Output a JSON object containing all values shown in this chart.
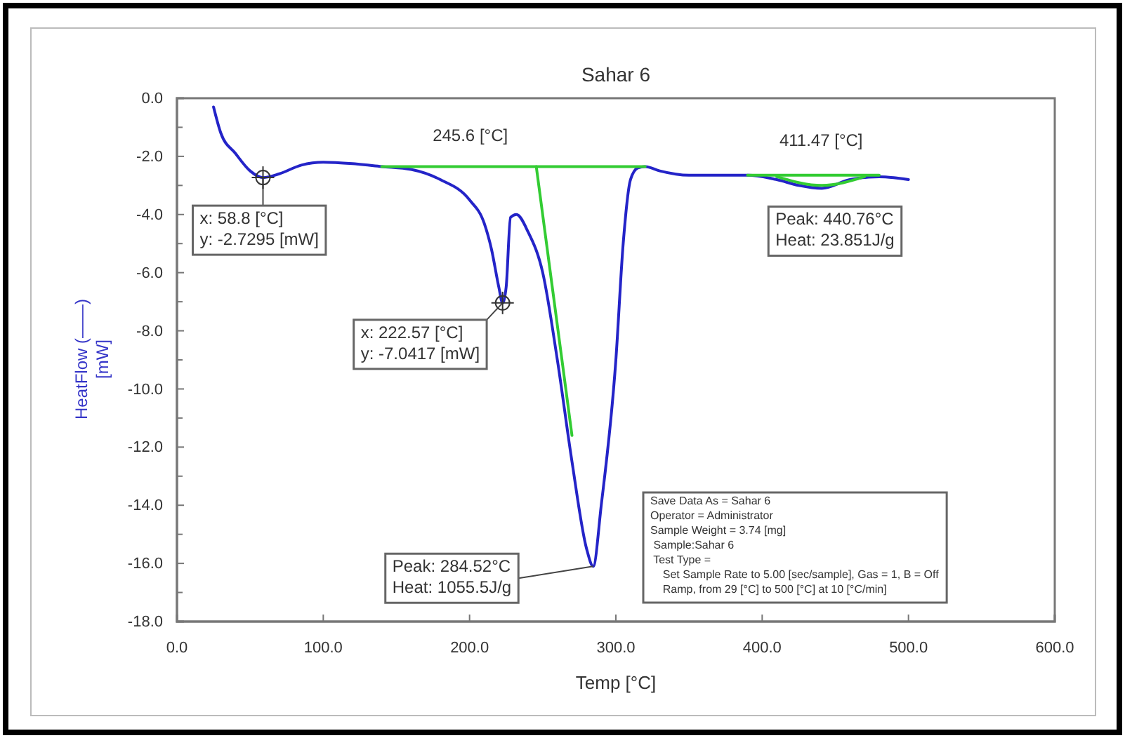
{
  "chart_data": {
    "type": "line",
    "title": "Sahar 6",
    "xlabel": "Temp [°C]",
    "ylabel": "HeatFlow (——)\n[mW]",
    "xlim": [
      0,
      600
    ],
    "xticks": [
      {
        "value": 0,
        "label": "0.0"
      },
      {
        "value": 100,
        "label": "100.0"
      },
      {
        "value": 200,
        "label": "200.0"
      },
      {
        "value": 300,
        "label": "300.0"
      },
      {
        "value": 400,
        "label": "400.0"
      },
      {
        "value": 500,
        "label": "500.0"
      },
      {
        "value": 600,
        "label": "600.0"
      }
    ],
    "ylim": [
      -18,
      0
    ],
    "yticks": [
      {
        "value": 0,
        "label": "0.0"
      },
      {
        "value": -2,
        "label": "-2.0"
      },
      {
        "value": -4,
        "label": "-4.0"
      },
      {
        "value": -6,
        "label": "-6.0"
      },
      {
        "value": -8,
        "label": "-8.0"
      },
      {
        "value": -10,
        "label": "-10.0"
      },
      {
        "value": -12,
        "label": "-12.0"
      },
      {
        "value": -14,
        "label": "-14.0"
      },
      {
        "value": -16,
        "label": "-16.0"
      },
      {
        "value": -18,
        "label": "-18.0"
      }
    ],
    "grid": false,
    "marker": "none",
    "line_style": "solid",
    "series": [
      {
        "color": "#2424c8",
        "x": [
          25,
          30,
          40,
          50,
          58.8,
          70,
          85,
          100,
          120,
          140,
          160,
          180,
          200,
          210,
          215,
          220,
          222.57,
          225,
          228,
          232,
          240,
          250,
          260,
          270,
          280,
          284.52,
          290,
          300,
          305,
          310,
          315,
          320,
          330,
          350,
          390,
          410,
          425,
          440.76,
          460,
          480,
          500
        ],
        "values": [
          -0.3,
          -1.2,
          -1.9,
          -2.5,
          -2.73,
          -2.6,
          -2.3,
          -2.2,
          -2.25,
          -2.35,
          -2.45,
          -2.8,
          -3.5,
          -4.3,
          -5.2,
          -6.5,
          -7.04,
          -6.5,
          -4.1,
          -4.0,
          -4.6,
          -6,
          -9,
          -12.5,
          -15.5,
          -16.1,
          -14,
          -9,
          -5,
          -2.8,
          -2.4,
          -2.35,
          -2.5,
          -2.65,
          -2.65,
          -2.8,
          -3.0,
          -3.1,
          -2.8,
          -2.7,
          -2.8
        ]
      },
      {
        "color": "#33cc33",
        "x": [
          140,
          320
        ],
        "values": [
          -2.35,
          -2.35
        ]
      },
      {
        "color": "#33cc33",
        "x": [
          245.6,
          270
        ],
        "values": [
          -2.35,
          -11.6
        ]
      },
      {
        "color": "#33cc33",
        "x": [
          390,
          480
        ],
        "values": [
          -2.65,
          -2.65
        ]
      },
      {
        "color": "#33cc33",
        "x": [
          410,
          440.76,
          470
        ],
        "values": [
          -2.7,
          -3.0,
          -2.7
        ]
      }
    ],
    "annotations": [
      {
        "text": "x: 58.8 [°C]\ny: -2.7295 [mW]",
        "x": 58.8,
        "y": -2.7295
      },
      {
        "text": "x: 222.57 [°C]\ny: -7.0417 [mW]",
        "x": 222.57,
        "y": -7.0417
      },
      {
        "text": "245.6 [°C]",
        "x": 245.6,
        "y": -2.35
      },
      {
        "text": "411.47 [°C]",
        "x": 411.47,
        "y": -2.65
      },
      {
        "text": "Peak: 440.76°C\nHeat: 23.851J/g",
        "x": 440.76,
        "y": -3.1
      },
      {
        "text": "Peak: 284.52°C\nHeat: 1055.5J/g",
        "x": 284.52,
        "y": -16.1
      },
      "Save Data As = Sahar 6\nOperator = Administrator\nSample Weight = 3.74 [mg]\n Sample:Sahar 6\n Test Type =\n    Set Sample Rate to 5.00 [sec/sample], Gas = 1, B = Off\n    Ramp, from 29 [°C] to 500 [°C] at 10 [°C/min]"
    ]
  }
}
